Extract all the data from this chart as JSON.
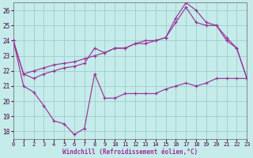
{
  "xlabel": "Windchill (Refroidissement éolien,°C)",
  "bg_color": "#c5ecea",
  "grid_color": "#9ececa",
  "line_color": "#993399",
  "spine_color": "#777777",
  "xlim": [
    0,
    23
  ],
  "ylim": [
    17.5,
    26.5
  ],
  "yticks": [
    18,
    19,
    20,
    21,
    22,
    23,
    24,
    25,
    26
  ],
  "xticks": [
    0,
    1,
    2,
    3,
    4,
    5,
    6,
    7,
    8,
    9,
    10,
    11,
    12,
    13,
    14,
    15,
    16,
    17,
    18,
    19,
    20,
    21,
    22,
    23
  ],
  "series1": [
    24.0,
    21.8,
    22.0,
    22.2,
    22.4,
    22.5,
    22.6,
    22.8,
    23.0,
    23.2,
    23.5,
    23.5,
    23.8,
    23.8,
    24.0,
    24.2,
    25.2,
    26.2,
    25.2,
    25.0,
    25.0,
    24.0,
    23.5,
    21.5
  ],
  "series2": [
    24.0,
    21.8,
    21.5,
    21.8,
    22.0,
    22.2,
    22.3,
    22.5,
    23.5,
    23.2,
    23.5,
    23.5,
    23.8,
    24.0,
    24.0,
    24.2,
    25.5,
    26.5,
    26.0,
    25.2,
    25.0,
    24.2,
    23.5,
    21.5
  ],
  "series3": [
    24.0,
    21.0,
    20.6,
    19.7,
    18.7,
    18.5,
    17.8,
    18.2,
    21.8,
    20.2,
    20.2,
    20.5,
    20.5,
    20.5,
    20.5,
    20.8,
    21.0,
    21.2,
    21.0,
    21.2,
    21.5,
    21.5,
    21.5,
    21.5
  ]
}
